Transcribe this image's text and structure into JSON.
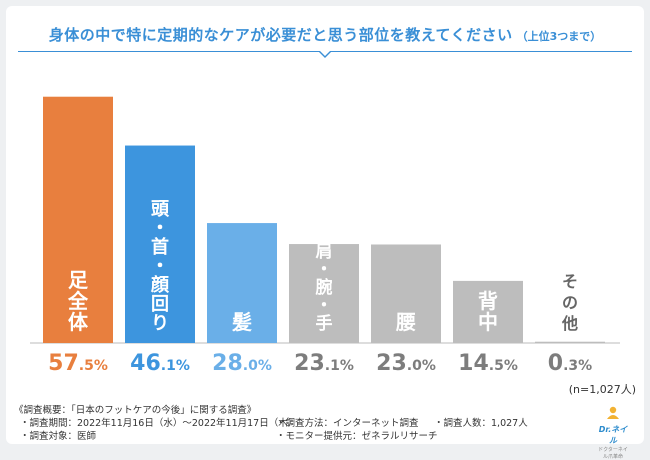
{
  "title": {
    "main": "身体の中で特に定期的なケアが必要だと思う部位を教えてください",
    "sub": "（上位3つまで）"
  },
  "chart_data": {
    "type": "bar",
    "title": "身体の中で特に定期的なケアが必要だと思う部位を教えてください（上位3つまで）",
    "categories": [
      "足全体",
      "頭・首・顔回り",
      "髪",
      "肩・腕・手",
      "腰",
      "背中",
      "その他"
    ],
    "values": [
      57.5,
      46.1,
      28.0,
      23.1,
      23.0,
      14.5,
      0.3
    ],
    "value_labels_int": [
      "57",
      "46",
      "28",
      "23",
      "23",
      "14",
      "0"
    ],
    "value_labels_dec": [
      ".5%",
      ".1%",
      ".0%",
      ".1%",
      ".0%",
      ".5%",
      ".3%"
    ],
    "colors": [
      "#e87f3e",
      "#3d95de",
      "#6aafe8",
      "#bdbdbd",
      "#bdbdbd",
      "#bdbdbd",
      "#bdbdbd"
    ],
    "label_colors": [
      "#e87f3e",
      "#3d95de",
      "#6aafe8",
      "#7d7d7d",
      "#7d7d7d",
      "#7d7d7d",
      "#7d7d7d"
    ],
    "ylim": [
      0,
      60
    ],
    "xlabel": "",
    "ylabel": ""
  },
  "sample_note": "(n=1,027人)",
  "footer": {
    "overview": "《調査概要：「日本のフットケアの今後」に関する調査》",
    "period": "・調査期間：2022年11月16日（水）～2022年11月17日（木）",
    "target": "・調査対象：医師",
    "method": "・調査方法：インターネット調査",
    "provider": "・モニター提供元：ゼネラルリサーチ",
    "count": "・調査人数：1,027人"
  },
  "logo": {
    "text": "Dr.ネイル",
    "sub": "ドクターネイル爪革命"
  }
}
